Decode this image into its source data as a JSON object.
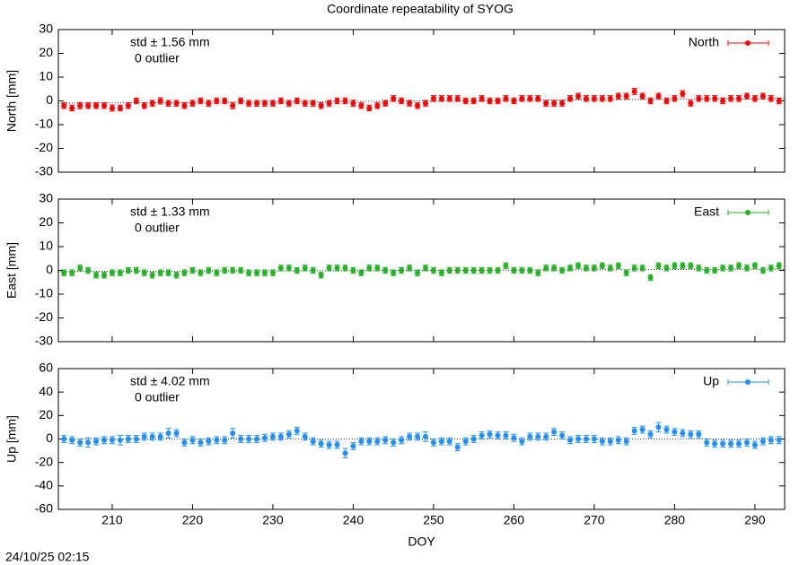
{
  "chart_data": [
    {
      "type": "errorbar",
      "title": "Coordinate repeatability of SYOG",
      "y_label": "North [mm]",
      "annotations": [
        "std ± 1.56 mm",
        "0 outlier"
      ],
      "xlim": [
        203.3,
        293.7
      ],
      "xticks": [
        210,
        220,
        230,
        240,
        250,
        260,
        270,
        280,
        290
      ],
      "ylim": [
        -30,
        30
      ],
      "yticks": [
        -30,
        -20,
        -10,
        0,
        10,
        20,
        30
      ],
      "fit_line": [
        -1,
        1
      ],
      "x": [
        204,
        205,
        206,
        207,
        208,
        209,
        210,
        211,
        212,
        213,
        214,
        215,
        216,
        217,
        218,
        219,
        220,
        221,
        222,
        223,
        224,
        225,
        226,
        227,
        228,
        229,
        230,
        231,
        232,
        233,
        234,
        235,
        236,
        237,
        238,
        239,
        240,
        241,
        242,
        243,
        244,
        245,
        246,
        247,
        248,
        249,
        250,
        251,
        252,
        253,
        254,
        255,
        256,
        257,
        258,
        259,
        260,
        261,
        262,
        263,
        264,
        265,
        266,
        267,
        268,
        269,
        270,
        271,
        272,
        273,
        274,
        275,
        276,
        277,
        278,
        279,
        280,
        281,
        282,
        283,
        284,
        285,
        286,
        287,
        288,
        289,
        290,
        291,
        292,
        293
      ],
      "series": [
        {
          "name": "North",
          "color": "#ff0000",
          "values": [
            -2,
            -3,
            -2,
            -2,
            -2,
            -2,
            -3,
            -3,
            -2,
            0,
            -2,
            -1,
            0,
            -1,
            -1,
            -2,
            -1,
            0,
            -1,
            0,
            0,
            -2,
            0,
            -1,
            -1,
            -1,
            -1,
            0,
            -1,
            0,
            -1,
            -1,
            -2,
            -1,
            0,
            0,
            -1,
            -2,
            -3,
            -2,
            -1,
            1,
            0,
            -1,
            -2,
            -1,
            1,
            1,
            1,
            1,
            0,
            0,
            1,
            0,
            0,
            1,
            0,
            1,
            1,
            1,
            -1,
            -1,
            -1,
            1,
            2,
            1,
            1,
            1,
            1,
            2,
            2,
            4,
            2,
            0,
            2,
            0,
            1,
            3,
            -1,
            1,
            1,
            1,
            0,
            1,
            1,
            2,
            1,
            2,
            1,
            0
          ],
          "errors": [
            1.2,
            1.2,
            1.3,
            1.2,
            1.2,
            1.2,
            1.3,
            1.2,
            1.2,
            1.2,
            1.2,
            1.2,
            1.3,
            1.2,
            1.2,
            1.2,
            1.2,
            1.2,
            1.2,
            1.2,
            1.2,
            1.3,
            1.2,
            1.2,
            1.2,
            1.2,
            1.2,
            1.2,
            1.2,
            1.2,
            1.2,
            1.2,
            1.2,
            1.2,
            1.2,
            1.2,
            1.3,
            1.2,
            1.2,
            1.2,
            1.2,
            1.2,
            1.2,
            1.2,
            1.2,
            1.2,
            1.2,
            1.2,
            1.2,
            1.2,
            1.2,
            1.2,
            1.2,
            1.2,
            1.2,
            1.2,
            1.2,
            1.2,
            1.2,
            1.2,
            1.2,
            1.2,
            1.2,
            1.2,
            1.2,
            1.2,
            1.2,
            1.2,
            1.2,
            1.2,
            1.2,
            1.3,
            1.2,
            1.2,
            1.2,
            1.2,
            1.2,
            1.3,
            1.2,
            1.2,
            1.2,
            1.2,
            1.2,
            1.2,
            1.2,
            1.2,
            1.2,
            1.2,
            1.2,
            1.2
          ]
        }
      ]
    },
    {
      "type": "errorbar",
      "y_label": "East [mm]",
      "annotations": [
        "std ± 1.33 mm",
        "0 outlier"
      ],
      "xlim": [
        203.3,
        293.7
      ],
      "xticks": [
        210,
        220,
        230,
        240,
        250,
        260,
        270,
        280,
        290
      ],
      "ylim": [
        -30,
        30
      ],
      "yticks": [
        -30,
        -20,
        -10,
        0,
        10,
        20,
        30
      ],
      "fit_line": [
        -0.5,
        0.5
      ],
      "x": [
        204,
        205,
        206,
        207,
        208,
        209,
        210,
        211,
        212,
        213,
        214,
        215,
        216,
        217,
        218,
        219,
        220,
        221,
        222,
        223,
        224,
        225,
        226,
        227,
        228,
        229,
        230,
        231,
        232,
        233,
        234,
        235,
        236,
        237,
        238,
        239,
        240,
        241,
        242,
        243,
        244,
        245,
        246,
        247,
        248,
        249,
        250,
        251,
        252,
        253,
        254,
        255,
        256,
        257,
        258,
        259,
        260,
        261,
        262,
        263,
        264,
        265,
        266,
        267,
        268,
        269,
        270,
        271,
        272,
        273,
        274,
        275,
        276,
        277,
        278,
        279,
        280,
        281,
        282,
        283,
        284,
        285,
        286,
        287,
        288,
        289,
        290,
        291,
        292,
        293
      ],
      "series": [
        {
          "name": "East",
          "color": "#22b422",
          "values": [
            -1,
            -1,
            1,
            0,
            -2,
            -2,
            -1,
            -1,
            0,
            0,
            -1,
            -2,
            -1,
            -1,
            -2,
            -1,
            0,
            -1,
            0,
            -1,
            0,
            0,
            0,
            -1,
            -1,
            -1,
            -1,
            1,
            1,
            0,
            1,
            0,
            -2,
            1,
            1,
            1,
            0,
            -1,
            1,
            1,
            0,
            -1,
            0,
            1,
            -1,
            1,
            0,
            -1,
            0,
            0,
            0,
            0,
            0,
            0,
            0,
            2,
            0,
            0,
            0,
            -1,
            1,
            1,
            0,
            1,
            2,
            1,
            1,
            2,
            1,
            2,
            -1,
            1,
            1,
            -3,
            2,
            1,
            2,
            2,
            2,
            1,
            0,
            0,
            1,
            1,
            2,
            1,
            2,
            0,
            1,
            2
          ],
          "errors": [
            1.2,
            1.2,
            1.2,
            1.2,
            1.2,
            1.2,
            1.2,
            1.2,
            1.2,
            1.2,
            1.2,
            1.2,
            1.2,
            1.2,
            1.2,
            1.2,
            1.2,
            1.2,
            1.2,
            1.2,
            1.2,
            1.2,
            1.2,
            1.2,
            1.2,
            1.2,
            1.2,
            1.2,
            1.2,
            1.2,
            1.2,
            1.2,
            1.2,
            1.2,
            1.2,
            1.2,
            1.2,
            1.2,
            1.2,
            1.2,
            1.2,
            1.2,
            1.2,
            1.2,
            1.2,
            1.2,
            1.2,
            1.2,
            1.2,
            1.2,
            1.2,
            1.2,
            1.2,
            1.2,
            1.2,
            1.2,
            1.2,
            1.2,
            1.2,
            1.2,
            1.2,
            1.2,
            1.2,
            1.2,
            1.2,
            1.2,
            1.2,
            1.2,
            1.2,
            1.2,
            1.2,
            1.2,
            1.2,
            1.2,
            1.2,
            1.2,
            1.2,
            1.2,
            1.2,
            1.2,
            1.2,
            1.2,
            1.2,
            1.2,
            1.2,
            1.2,
            1.2,
            1.2,
            1.2,
            1.2
          ]
        }
      ]
    },
    {
      "type": "errorbar",
      "y_label": "Up [mm]",
      "x_label": "DOY",
      "annotations": [
        "std ± 4.02 mm",
        "0 outlier"
      ],
      "xlim": [
        203.3,
        293.7
      ],
      "xticks": [
        210,
        220,
        230,
        240,
        250,
        260,
        270,
        280,
        290
      ],
      "ylim": [
        -60,
        60
      ],
      "yticks": [
        -60,
        -40,
        -20,
        0,
        20,
        40,
        60
      ],
      "fit_line": [
        0,
        0
      ],
      "x": [
        204,
        205,
        206,
        207,
        208,
        209,
        210,
        211,
        212,
        213,
        214,
        215,
        216,
        217,
        218,
        219,
        220,
        221,
        222,
        223,
        224,
        225,
        226,
        227,
        228,
        229,
        230,
        231,
        232,
        233,
        234,
        235,
        236,
        237,
        238,
        239,
        240,
        241,
        242,
        243,
        244,
        245,
        246,
        247,
        248,
        249,
        250,
        251,
        252,
        253,
        254,
        255,
        256,
        257,
        258,
        259,
        260,
        261,
        262,
        263,
        264,
        265,
        266,
        267,
        268,
        269,
        270,
        271,
        272,
        273,
        274,
        275,
        276,
        277,
        278,
        279,
        280,
        281,
        282,
        283,
        284,
        285,
        286,
        287,
        288,
        289,
        290,
        291,
        292,
        293
      ],
      "series": [
        {
          "name": "Up",
          "color": "#1e90ff",
          "values": [
            0,
            -1,
            -3,
            -3,
            -2,
            -1,
            -1,
            -1,
            0,
            0,
            2,
            2,
            2,
            5,
            5,
            -3,
            -1,
            -3,
            -2,
            -1,
            -1,
            5,
            0,
            0,
            0,
            1,
            2,
            2,
            4,
            7,
            2,
            -2,
            -4,
            -5,
            -5,
            -12,
            -6,
            -2,
            -2,
            -2,
            -1,
            -3,
            -1,
            2,
            2,
            2,
            -3,
            -2,
            -2,
            -7,
            -2,
            0,
            3,
            4,
            3,
            3,
            1,
            -2,
            2,
            2,
            2,
            6,
            3,
            -1,
            0,
            0,
            0,
            -2,
            -2,
            -1,
            -2,
            7,
            8,
            4,
            10,
            8,
            6,
            5,
            4,
            4,
            -3,
            -4,
            -4,
            -4,
            -4,
            -3,
            -5,
            -2,
            -1,
            -1
          ],
          "errors": [
            3,
            3,
            3,
            4,
            3,
            3,
            3,
            4,
            3,
            3,
            3,
            3,
            3,
            4,
            3,
            3,
            3,
            3,
            3,
            3,
            3,
            4,
            3,
            3,
            3,
            3,
            3,
            3,
            3,
            3,
            3,
            3,
            3,
            3,
            3,
            4,
            3,
            3,
            3,
            3,
            3,
            3,
            3,
            3,
            3,
            4,
            3,
            3,
            3,
            3,
            3,
            3,
            3,
            3,
            3,
            3,
            3,
            3,
            3,
            3,
            3,
            3,
            3,
            3,
            3,
            3,
            3,
            3,
            3,
            3,
            3,
            3,
            3,
            3,
            4,
            3,
            3,
            3,
            3,
            3,
            3,
            3,
            3,
            3,
            3,
            3,
            3,
            3,
            3,
            3
          ]
        }
      ]
    }
  ],
  "timestamp": "24/10/25 02:15"
}
